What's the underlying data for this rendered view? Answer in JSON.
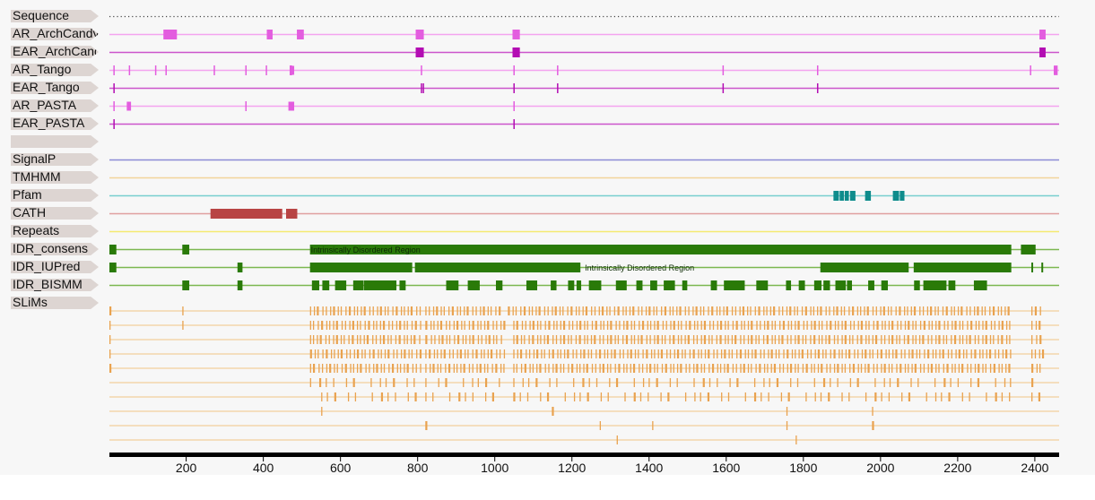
{
  "colors": {
    "label_bg": "#ddd5d2",
    "sequence": "#444444",
    "archcandy": "#e35ddf",
    "ear": "#b30db3",
    "archcandy_line": "#f4a3ef",
    "ear_line": "#cc55cc",
    "signalp": "#8a8ad6",
    "tmhmm": "#f1d49a",
    "pfam": "#0e8c8c",
    "pfam_line": "#77cfcf",
    "cath": "#b84444",
    "cath_line": "#e0a0a0",
    "repeats": "#f5ea70",
    "idr": "#2a7a08",
    "idr_line": "#7cb850",
    "slims": "#e9a24f",
    "slims_line": "#f3cf9c",
    "axis": "#000000"
  },
  "tracks": [
    {
      "id": "sequence",
      "label": "Sequence",
      "style": "dotted"
    },
    {
      "id": "ar_archcandy",
      "label": "AR_ArchCandy",
      "features": [
        [
          141,
          176
        ],
        [
          409,
          424
        ],
        [
          487,
          505
        ],
        [
          795,
          816
        ],
        [
          1046,
          1065
        ],
        [
          2412,
          2428
        ]
      ]
    },
    {
      "id": "ear_archcandy",
      "label": "EAR_ArchCandy",
      "features": [
        [
          795,
          816
        ],
        [
          1046,
          1065
        ],
        [
          2412,
          2428
        ]
      ]
    },
    {
      "id": "ar_tango",
      "label": "AR_Tango",
      "ticks": [
        13,
        53,
        121,
        148,
        273,
        355,
        408,
        470,
        473,
        810,
        1050,
        1163,
        1592,
        1837,
        2389,
        2452,
        2457
      ],
      "wide": [
        [
          470,
          480
        ],
        [
          2449,
          2459
        ]
      ]
    },
    {
      "id": "ear_tango",
      "label": "EAR_Tango",
      "ticks": [
        13,
        810,
        815,
        1050,
        1163,
        1592,
        1837
      ]
    },
    {
      "id": "ar_pasta",
      "label": "AR_PASTA",
      "ticks": [
        13,
        355,
        1050
      ],
      "wide": [
        [
          46,
          57
        ],
        [
          465,
          480
        ]
      ]
    },
    {
      "id": "ear_pasta",
      "label": "EAR_PASTA",
      "ticks": [
        13,
        1050
      ]
    },
    {
      "id": "blank",
      "label": ""
    },
    {
      "id": "signalp",
      "label": "SignalP"
    },
    {
      "id": "tmhmm",
      "label": "TMHMM"
    },
    {
      "id": "pfam",
      "label": "Pfam",
      "features": [
        [
          1878,
          1892
        ],
        [
          1894,
          1905
        ],
        [
          1907,
          1918
        ],
        [
          1921,
          1935
        ],
        [
          1960,
          1975
        ],
        [
          2032,
          2048
        ],
        [
          2050,
          2062
        ]
      ]
    },
    {
      "id": "cath",
      "label": "CATH",
      "features": [
        [
          263,
          449
        ],
        [
          459,
          488
        ]
      ]
    },
    {
      "id": "repeats",
      "label": "Repeats"
    },
    {
      "id": "idr_consens",
      "label": "IDR_consens",
      "features": [
        [
          1,
          19
        ],
        [
          190,
          208
        ],
        [
          521,
          2339
        ],
        [
          2364,
          2402
        ]
      ],
      "region": {
        "start": 521,
        "text": "Intrinsically Disordered Region"
      }
    },
    {
      "id": "idr_iupred",
      "label": "IDR_IUPred",
      "features": [
        [
          1,
          19
        ],
        [
          333,
          346
        ],
        [
          521,
          786
        ],
        [
          793,
          1222
        ],
        [
          1844,
          2073
        ],
        [
          2086,
          2339
        ],
        [
          2391,
          2395
        ],
        [
          2417,
          2421
        ]
      ],
      "region": {
        "start": 1231,
        "text": "Intrinsically Disordered Region"
      }
    },
    {
      "id": "idr_bismm",
      "label": "IDR_BISMM",
      "features": [
        [
          190,
          208
        ],
        [
          333,
          346
        ],
        [
          526,
          545
        ],
        [
          553,
          571
        ],
        [
          586,
          615
        ],
        [
          633,
          659
        ],
        [
          660,
          745
        ],
        [
          753,
          769
        ],
        [
          874,
          906
        ],
        [
          930,
          961
        ],
        [
          1003,
          1020
        ],
        [
          1082,
          1110
        ],
        [
          1145,
          1160
        ],
        [
          1190,
          1206
        ],
        [
          1212,
          1224
        ],
        [
          1244,
          1276
        ],
        [
          1314,
          1342
        ],
        [
          1367,
          1383
        ],
        [
          1403,
          1421
        ],
        [
          1438,
          1467
        ],
        [
          1486,
          1499
        ],
        [
          1560,
          1576
        ],
        [
          1594,
          1648
        ],
        [
          1678,
          1708
        ],
        [
          1755,
          1768
        ],
        [
          1788,
          1804
        ],
        [
          1828,
          1847
        ],
        [
          1852,
          1869
        ],
        [
          1883,
          1910
        ],
        [
          1913,
          1926
        ],
        [
          1968,
          1984
        ],
        [
          2002,
          2019
        ],
        [
          2087,
          2102
        ],
        [
          2111,
          2171
        ],
        [
          2176,
          2194
        ],
        [
          2242,
          2276
        ]
      ]
    },
    {
      "id": "slims",
      "label": "SLiMs"
    }
  ],
  "slims_rows": [
    {
      "groups": [
        [
          1,
          14
        ],
        [
          190,
          196
        ],
        [
          521,
          811
        ],
        [
          820,
          1023
        ],
        [
          1034,
          2339
        ],
        [
          2391,
          2420
        ]
      ]
    },
    {
      "groups": [
        [
          1,
          14
        ],
        [
          190,
          196
        ],
        [
          521,
          811
        ],
        [
          820,
          1024
        ],
        [
          1048,
          2339
        ],
        [
          2391,
          2420
        ]
      ]
    },
    {
      "groups": [
        [
          1,
          14
        ],
        [
          521,
          811
        ],
        [
          820,
          1024
        ],
        [
          1048,
          2339
        ],
        [
          2391,
          2420
        ]
      ]
    },
    {
      "groups": [
        [
          1,
          8
        ],
        [
          521,
          811
        ],
        [
          820,
          1024
        ],
        [
          1048,
          2339
        ],
        [
          2391,
          2420
        ]
      ]
    },
    {
      "groups": [
        [
          1,
          8
        ],
        [
          521,
          811
        ],
        [
          820,
          1024
        ],
        [
          1048,
          2339
        ],
        [
          2391,
          2420
        ]
      ]
    },
    {
      "groups": [
        [
          521,
          811
        ],
        [
          820,
          1024
        ],
        [
          1048,
          2339
        ],
        [
          2391,
          2420
        ]
      ]
    },
    {
      "groups": [
        [
          550,
          814
        ],
        [
          820,
          1024
        ],
        [
          1048,
          2339
        ],
        [
          2391,
          2420
        ]
      ]
    },
    {
      "groups": [
        [
          550,
          560
        ],
        [
          1148,
          1166
        ],
        [
          1756,
          1774
        ],
        [
          1978,
          1983
        ]
      ]
    },
    {
      "groups": [
        [
          820,
          825
        ],
        [
          1272,
          1275
        ],
        [
          1408,
          1415
        ],
        [
          1756,
          1764
        ],
        [
          1978,
          1983
        ]
      ]
    },
    {
      "groups": [
        [
          1316,
          1320
        ],
        [
          1780,
          1786
        ]
      ]
    }
  ],
  "axis": {
    "min": 1,
    "max": 2463,
    "ticks": [
      200,
      400,
      600,
      800,
      1000,
      1200,
      1400,
      1600,
      1800,
      2000,
      2200,
      2400
    ]
  }
}
